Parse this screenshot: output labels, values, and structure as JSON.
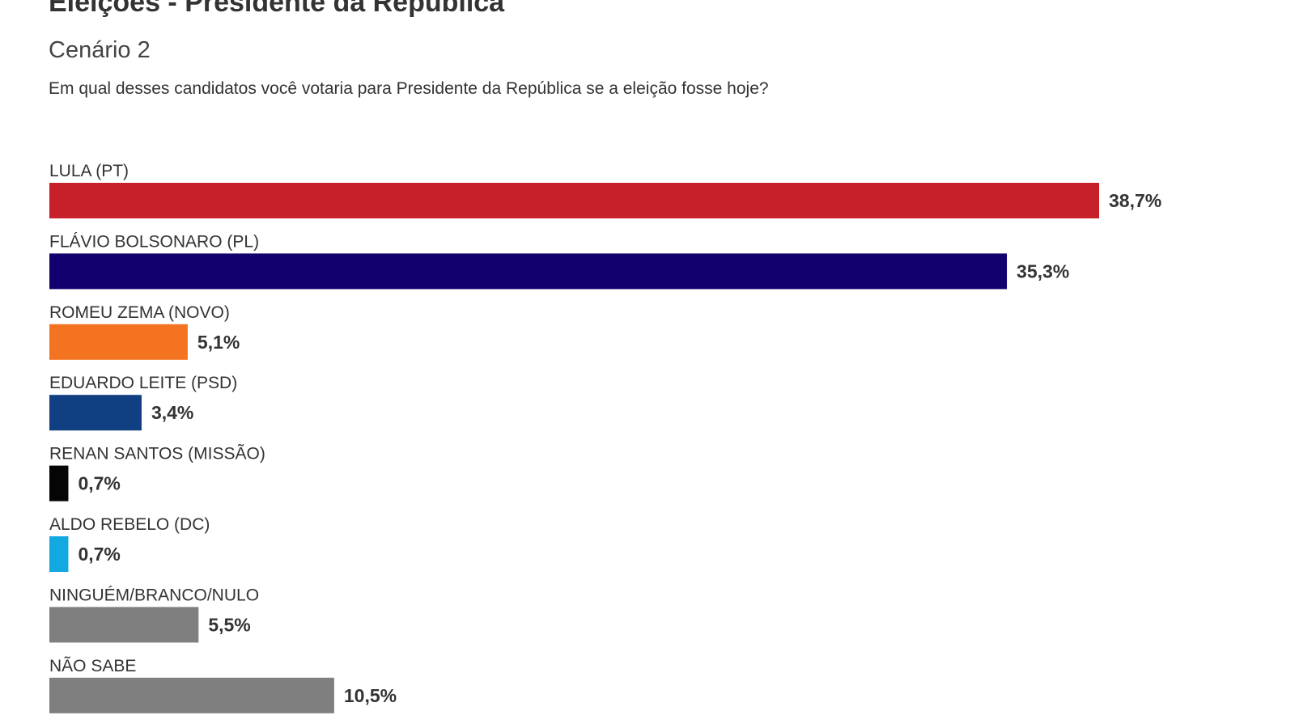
{
  "header": {
    "title": "Eleições - Presidente da República",
    "subtitle": "Cenário 2",
    "question": "Em qual desses candidatos você votaria para Presidente da República se a eleição fosse hoje?"
  },
  "chart_data": {
    "type": "bar",
    "orientation": "horizontal",
    "title": "Eleições - Presidente da República",
    "subtitle": "Cenário 2",
    "xlabel": "",
    "ylabel": "",
    "unit": "%",
    "xlim": [
      0,
      38.7
    ],
    "grid": false,
    "categories": [
      "LULA (PT)",
      "FLÁVIO BOLSONARO (PL)",
      "ROMEU ZEMA (NOVO)",
      "EDUARDO LEITE (PSD)",
      "RENAN SANTOS (MISSÃO)",
      "ALDO REBELO (DC)",
      "NINGUÉM/BRANCO/NULO",
      "NÃO SABE"
    ],
    "values": [
      38.7,
      35.3,
      5.1,
      3.4,
      0.7,
      0.7,
      5.5,
      10.5
    ],
    "value_labels": [
      "38,7%",
      "35,3%",
      "5,1%",
      "3,4%",
      "0,7%",
      "0,7%",
      "5,5%",
      "10,5%"
    ],
    "colors": [
      "#c8202a",
      "#12006e",
      "#f47321",
      "#103f82",
      "#050505",
      "#12a9e0",
      "#7f7f7f",
      "#7f7f7f"
    ]
  }
}
